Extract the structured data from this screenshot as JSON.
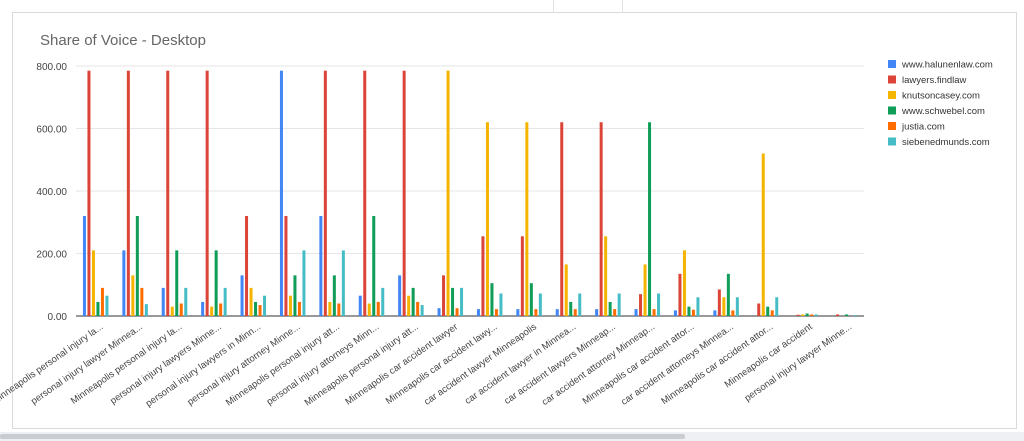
{
  "chart_data": {
    "type": "bar",
    "title": "Share of Voice - Desktop",
    "xlabel": "",
    "ylabel": "",
    "ylim": [
      0,
      800
    ],
    "yticks": [
      "800.00",
      "600.00",
      "400.00",
      "200.00",
      "0.00"
    ],
    "grid": true,
    "legend_position": "right",
    "categories": [
      "Minneapolis personal injury la...",
      "personal injury lawyer Minnea...",
      "Minneapolis personal injury la...",
      "personal injury lawyers Minne...",
      "personal injury lawyers in Minn...",
      "personal injury attorney Minne...",
      "Minneapolis personal injury att...",
      "personal injury attorneys Minn...",
      "Minneapolis personal injury att...",
      "Minneapolis car accident lawyer",
      "Minneapolis car accident lawy...",
      "car accident lawyer Minneapolis",
      "car accident lawyer in Minnea...",
      "car accident lawyers Minneap...",
      "car accident attorney Minneap...",
      "Minneapolis car accident attor...",
      "car accident attorneys Minnea...",
      "Minneapolis car accident attor...",
      "Minneapolis car accident",
      "personal injury lawyer Minne..."
    ],
    "series": [
      {
        "name": "www.halunenlaw.com",
        "color": "#4285f4",
        "values": [
          320,
          210,
          90,
          45,
          130,
          785,
          320,
          65,
          130,
          25,
          22,
          22,
          22,
          22,
          22,
          18,
          18,
          0,
          0,
          0
        ]
      },
      {
        "name": "lawyers.findlaw",
        "color": "#db4437",
        "values": [
          785,
          785,
          785,
          785,
          320,
          320,
          785,
          785,
          785,
          130,
          255,
          255,
          620,
          620,
          70,
          135,
          85,
          40,
          4,
          5
        ]
      },
      {
        "name": "knutsoncasey.com",
        "color": "#f4b400",
        "values": [
          210,
          130,
          30,
          30,
          90,
          65,
          45,
          40,
          65,
          785,
          620,
          620,
          165,
          255,
          165,
          210,
          60,
          520,
          5,
          0
        ]
      },
      {
        "name": "www.schwebel.com",
        "color": "#0f9d58",
        "values": [
          45,
          320,
          210,
          210,
          45,
          130,
          130,
          320,
          90,
          90,
          105,
          105,
          45,
          45,
          620,
          30,
          135,
          30,
          8,
          5
        ]
      },
      {
        "name": "justia.com",
        "color": "#ff6d00",
        "values": [
          90,
          90,
          40,
          40,
          35,
          45,
          40,
          45,
          45,
          25,
          22,
          22,
          22,
          22,
          22,
          20,
          18,
          18,
          5,
          0
        ]
      },
      {
        "name": "siebenedmunds.com",
        "color": "#46bdc6",
        "values": [
          65,
          38,
          90,
          90,
          65,
          210,
          210,
          90,
          35,
          90,
          72,
          72,
          72,
          72,
          72,
          60,
          60,
          60,
          5,
          3
        ]
      }
    ]
  }
}
